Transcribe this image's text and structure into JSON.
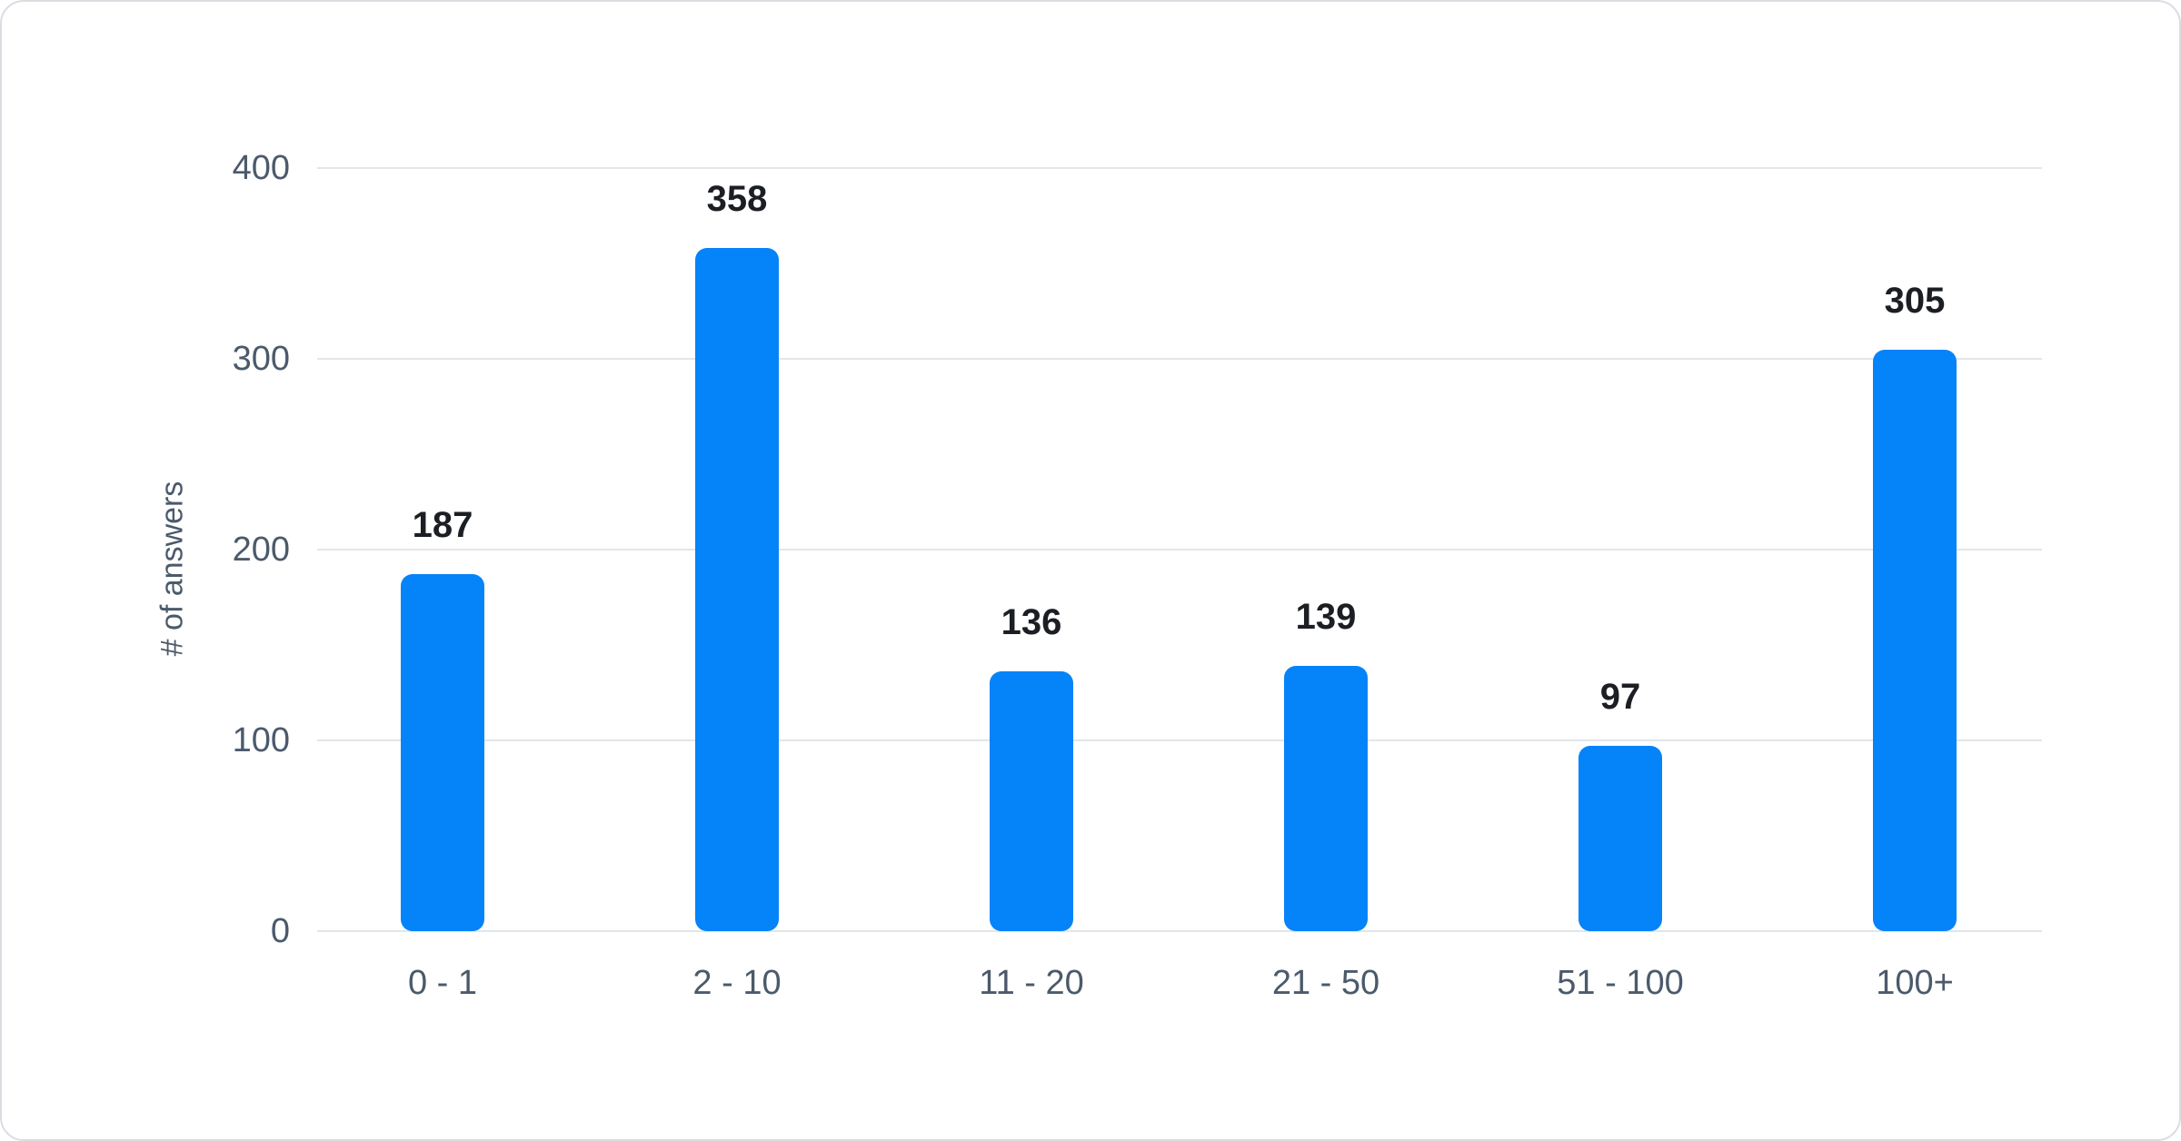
{
  "chart_data": {
    "type": "bar",
    "title": "",
    "xlabel": "",
    "ylabel": "# of answers",
    "categories": [
      "0 - 1",
      "2 - 10",
      "11 - 20",
      "21 - 50",
      "51 - 100",
      "100+"
    ],
    "values": [
      187,
      358,
      136,
      139,
      97,
      305
    ],
    "ylim": [
      0,
      400
    ],
    "yticks": [
      0,
      100,
      200,
      300,
      400
    ],
    "grid": "horizontal gridlines on",
    "legend": "none",
    "colors": {
      "bar_fill": "#0583f9",
      "value_label_text": "#1b1e23",
      "axis_tick_text": "#4b5a6b",
      "axis_title_text": "#4b5a6b",
      "gridline": "#e2e6ea",
      "card_border": "#d9dde2",
      "background": "#ffffff"
    }
  }
}
